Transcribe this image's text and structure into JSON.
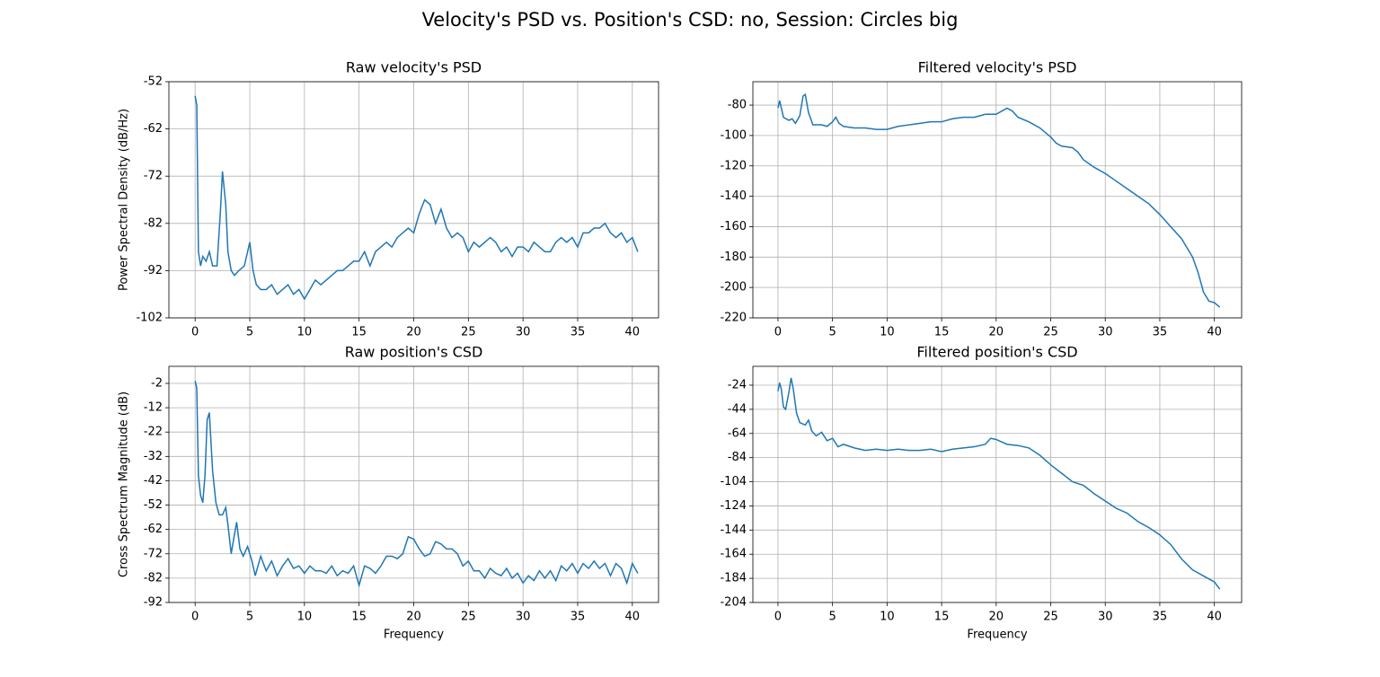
{
  "title": "Velocity's PSD vs. Position's CSD: no, Session: Circles big",
  "chart_data": [
    {
      "type": "line",
      "title": "Raw velocity's PSD",
      "ylabel": "Power Spectral Density (dB/Hz)",
      "grid": true,
      "color": "#1f77b4",
      "xlim": [
        -2.4,
        42.4
      ],
      "xticks": [
        0,
        5,
        10,
        15,
        20,
        25,
        30,
        35,
        40
      ],
      "ylim": [
        -102,
        -52
      ],
      "yticks": [
        -102,
        -92,
        -82,
        -72,
        -62,
        -52
      ],
      "x": [
        0,
        0.15,
        0.3,
        0.5,
        0.7,
        1.0,
        1.3,
        1.6,
        2.0,
        2.3,
        2.5,
        2.8,
        3.0,
        3.3,
        3.6,
        4.0,
        4.5,
        5.0,
        5.3,
        5.6,
        6.0,
        6.5,
        7.0,
        7.5,
        8.0,
        8.5,
        9.0,
        9.5,
        10.0,
        10.5,
        11.0,
        11.5,
        12.0,
        12.5,
        13.0,
        13.5,
        14.0,
        14.5,
        15.0,
        15.5,
        16.0,
        16.5,
        17.0,
        17.5,
        18.0,
        18.5,
        19.0,
        19.5,
        20.0,
        20.5,
        21.0,
        21.5,
        22.0,
        22.5,
        23.0,
        23.5,
        24.0,
        24.5,
        25.0,
        25.5,
        26.0,
        26.5,
        27.0,
        27.5,
        28.0,
        28.5,
        29.0,
        29.5,
        30.0,
        30.5,
        31.0,
        31.5,
        32.0,
        32.5,
        33.0,
        33.5,
        34.0,
        34.5,
        35.0,
        35.5,
        36.0,
        36.5,
        37.0,
        37.5,
        38.0,
        38.5,
        39.0,
        39.5,
        40.0,
        40.5
      ],
      "values": [
        -55,
        -57,
        -88,
        -91,
        -89,
        -90,
        -88,
        -91,
        -91,
        -80,
        -71,
        -78,
        -88,
        -92,
        -93,
        -92,
        -91,
        -86,
        -92,
        -95,
        -96,
        -96,
        -95,
        -97,
        -96,
        -95,
        -97,
        -96,
        -98,
        -96,
        -94,
        -95,
        -94,
        -93,
        -92,
        -92,
        -91,
        -90,
        -90,
        -88,
        -91,
        -88,
        -87,
        -86,
        -87,
        -85,
        -84,
        -83,
        -84,
        -80,
        -77,
        -78,
        -82,
        -79,
        -83,
        -85,
        -84,
        -85,
        -88,
        -86,
        -87,
        -86,
        -85,
        -86,
        -88,
        -87,
        -89,
        -87,
        -87,
        -88,
        -86,
        -87,
        -88,
        -88,
        -86,
        -85,
        -86,
        -85,
        -87,
        -84,
        -84,
        -83,
        -83,
        -82,
        -84,
        -85,
        -84,
        -86,
        -85,
        -88
      ]
    },
    {
      "type": "line",
      "title": "Filtered velocity's PSD",
      "grid": true,
      "color": "#1f77b4",
      "xlim": [
        -2.3,
        42.5
      ],
      "xticks": [
        0,
        5,
        10,
        15,
        20,
        25,
        30,
        35,
        40
      ],
      "ylim": [
        -220,
        -64.6
      ],
      "yticks": [
        -220,
        -200,
        -180,
        -160,
        -140,
        -120,
        -100,
        -80
      ],
      "x": [
        0,
        0.15,
        0.5,
        1.0,
        1.3,
        1.6,
        2.0,
        2.3,
        2.5,
        2.8,
        3.2,
        4.0,
        4.5,
        5.0,
        5.3,
        5.6,
        6.0,
        7.0,
        8.0,
        9.0,
        10.0,
        11.0,
        12.0,
        13.0,
        14.0,
        15.0,
        16.0,
        17.0,
        18.0,
        19.0,
        20.0,
        20.5,
        21.0,
        21.5,
        22.0,
        23.0,
        24.0,
        25.0,
        25.5,
        26.0,
        27.0,
        27.5,
        28.0,
        29.0,
        30.0,
        31.0,
        32.0,
        33.0,
        34.0,
        35.0,
        36.0,
        37.0,
        38.0,
        38.5,
        39.0,
        39.5,
        40.0,
        40.5
      ],
      "values": [
        -82,
        -77,
        -88,
        -90,
        -89,
        -92,
        -87,
        -74,
        -73,
        -85,
        -93,
        -93,
        -94,
        -91,
        -88,
        -92,
        -94,
        -95,
        -95,
        -96,
        -96,
        -94,
        -93,
        -92,
        -91,
        -91,
        -89,
        -88,
        -88,
        -86,
        -86,
        -84,
        -82,
        -84,
        -88,
        -91,
        -95,
        -101,
        -105,
        -107,
        -108,
        -111,
        -116,
        -121,
        -125,
        -130,
        -135,
        -140,
        -145,
        -152,
        -160,
        -168,
        -180,
        -190,
        -203,
        -209,
        -210,
        -213
      ]
    },
    {
      "type": "line",
      "title": "Raw position's CSD",
      "xlabel": "Frequency",
      "ylabel": "Cross Spectrum Magnitude (dB)",
      "grid": true,
      "color": "#1f77b4",
      "xlim": [
        -2.4,
        42.4
      ],
      "xticks": [
        0,
        5,
        10,
        15,
        20,
        25,
        30,
        35,
        40
      ],
      "ylim": [
        -92,
        5
      ],
      "yticks": [
        -92,
        -82,
        -72,
        -62,
        -52,
        -42,
        -32,
        -22,
        -12,
        -2
      ],
      "x": [
        0,
        0.15,
        0.3,
        0.5,
        0.7,
        0.9,
        1.1,
        1.3,
        1.6,
        1.9,
        2.2,
        2.5,
        2.8,
        3.0,
        3.3,
        3.6,
        3.8,
        4.1,
        4.4,
        4.8,
        5.2,
        5.5,
        6.0,
        6.5,
        7.0,
        7.5,
        8.0,
        8.5,
        9.0,
        9.5,
        10.0,
        10.5,
        11.0,
        11.5,
        12.0,
        12.5,
        13.0,
        13.5,
        14.0,
        14.5,
        15.0,
        15.5,
        16.0,
        16.5,
        17.0,
        17.5,
        18.0,
        18.5,
        19.0,
        19.5,
        20.0,
        20.5,
        21.0,
        21.5,
        22.0,
        22.5,
        23.0,
        23.5,
        24.0,
        24.5,
        25.0,
        25.5,
        26.0,
        26.5,
        27.0,
        27.5,
        28.0,
        28.5,
        29.0,
        29.5,
        30.0,
        30.5,
        31.0,
        31.5,
        32.0,
        32.5,
        33.0,
        33.5,
        34.0,
        34.5,
        35.0,
        35.5,
        36.0,
        36.5,
        37.0,
        37.5,
        38.0,
        38.5,
        39.0,
        39.5,
        40.0,
        40.5
      ],
      "values": [
        -1,
        -4,
        -40,
        -48,
        -51,
        -40,
        -17,
        -14,
        -38,
        -51,
        -56,
        -56,
        -53,
        -60,
        -72,
        -64,
        -59,
        -70,
        -73,
        -69,
        -75,
        -81,
        -73,
        -79,
        -75,
        -81,
        -77,
        -74,
        -78,
        -77,
        -80,
        -77,
        -79,
        -79,
        -80,
        -77,
        -81,
        -79,
        -80,
        -77,
        -85,
        -77,
        -78,
        -80,
        -77,
        -73,
        -73,
        -74,
        -72,
        -65,
        -66,
        -70,
        -73,
        -72,
        -67,
        -68,
        -70,
        -70,
        -72,
        -77,
        -75,
        -79,
        -79,
        -82,
        -78,
        -80,
        -81,
        -78,
        -82,
        -80,
        -84,
        -81,
        -83,
        -79,
        -82,
        -79,
        -83,
        -77,
        -79,
        -76,
        -80,
        -76,
        -78,
        -75,
        -78,
        -76,
        -81,
        -76,
        -78,
        -84,
        -76,
        -80
      ]
    },
    {
      "type": "line",
      "title": "Filtered position's CSD",
      "xlabel": "Frequency",
      "grid": true,
      "color": "#1f77b4",
      "xlim": [
        -2.3,
        42.5
      ],
      "xticks": [
        0,
        5,
        10,
        15,
        20,
        25,
        30,
        35,
        40
      ],
      "ylim": [
        -204,
        -8.4
      ],
      "yticks": [
        -204,
        -184,
        -164,
        -144,
        -124,
        -104,
        -84,
        -64,
        -44,
        -24
      ],
      "x": [
        0,
        0.15,
        0.3,
        0.5,
        0.7,
        1.0,
        1.2,
        1.4,
        1.7,
        2.0,
        2.5,
        2.8,
        3.1,
        3.5,
        4.0,
        4.5,
        5.0,
        5.5,
        6.0,
        7.0,
        8.0,
        9.0,
        10.0,
        11.0,
        12.0,
        13.0,
        14.0,
        15.0,
        16.0,
        17.0,
        18.0,
        19.0,
        19.5,
        20.0,
        21.0,
        22.0,
        23.0,
        24.0,
        25.0,
        26.0,
        27.0,
        28.0,
        29.0,
        30.0,
        31.0,
        32.0,
        33.0,
        34.0,
        35.0,
        36.0,
        37.0,
        38.0,
        39.0,
        40.0,
        40.5
      ],
      "values": [
        -29,
        -22,
        -27,
        -42,
        -44,
        -30,
        -18,
        -27,
        -47,
        -55,
        -57,
        -53,
        -62,
        -66,
        -63,
        -70,
        -68,
        -75,
        -73,
        -76,
        -78,
        -77,
        -78,
        -77,
        -78,
        -78,
        -77,
        -79,
        -77,
        -76,
        -75,
        -73,
        -68,
        -69,
        -73,
        -74,
        -76,
        -82,
        -90,
        -97,
        -104,
        -107,
        -114,
        -120,
        -126,
        -130,
        -137,
        -142,
        -148,
        -156,
        -168,
        -177,
        -182,
        -187,
        -193
      ]
    }
  ]
}
